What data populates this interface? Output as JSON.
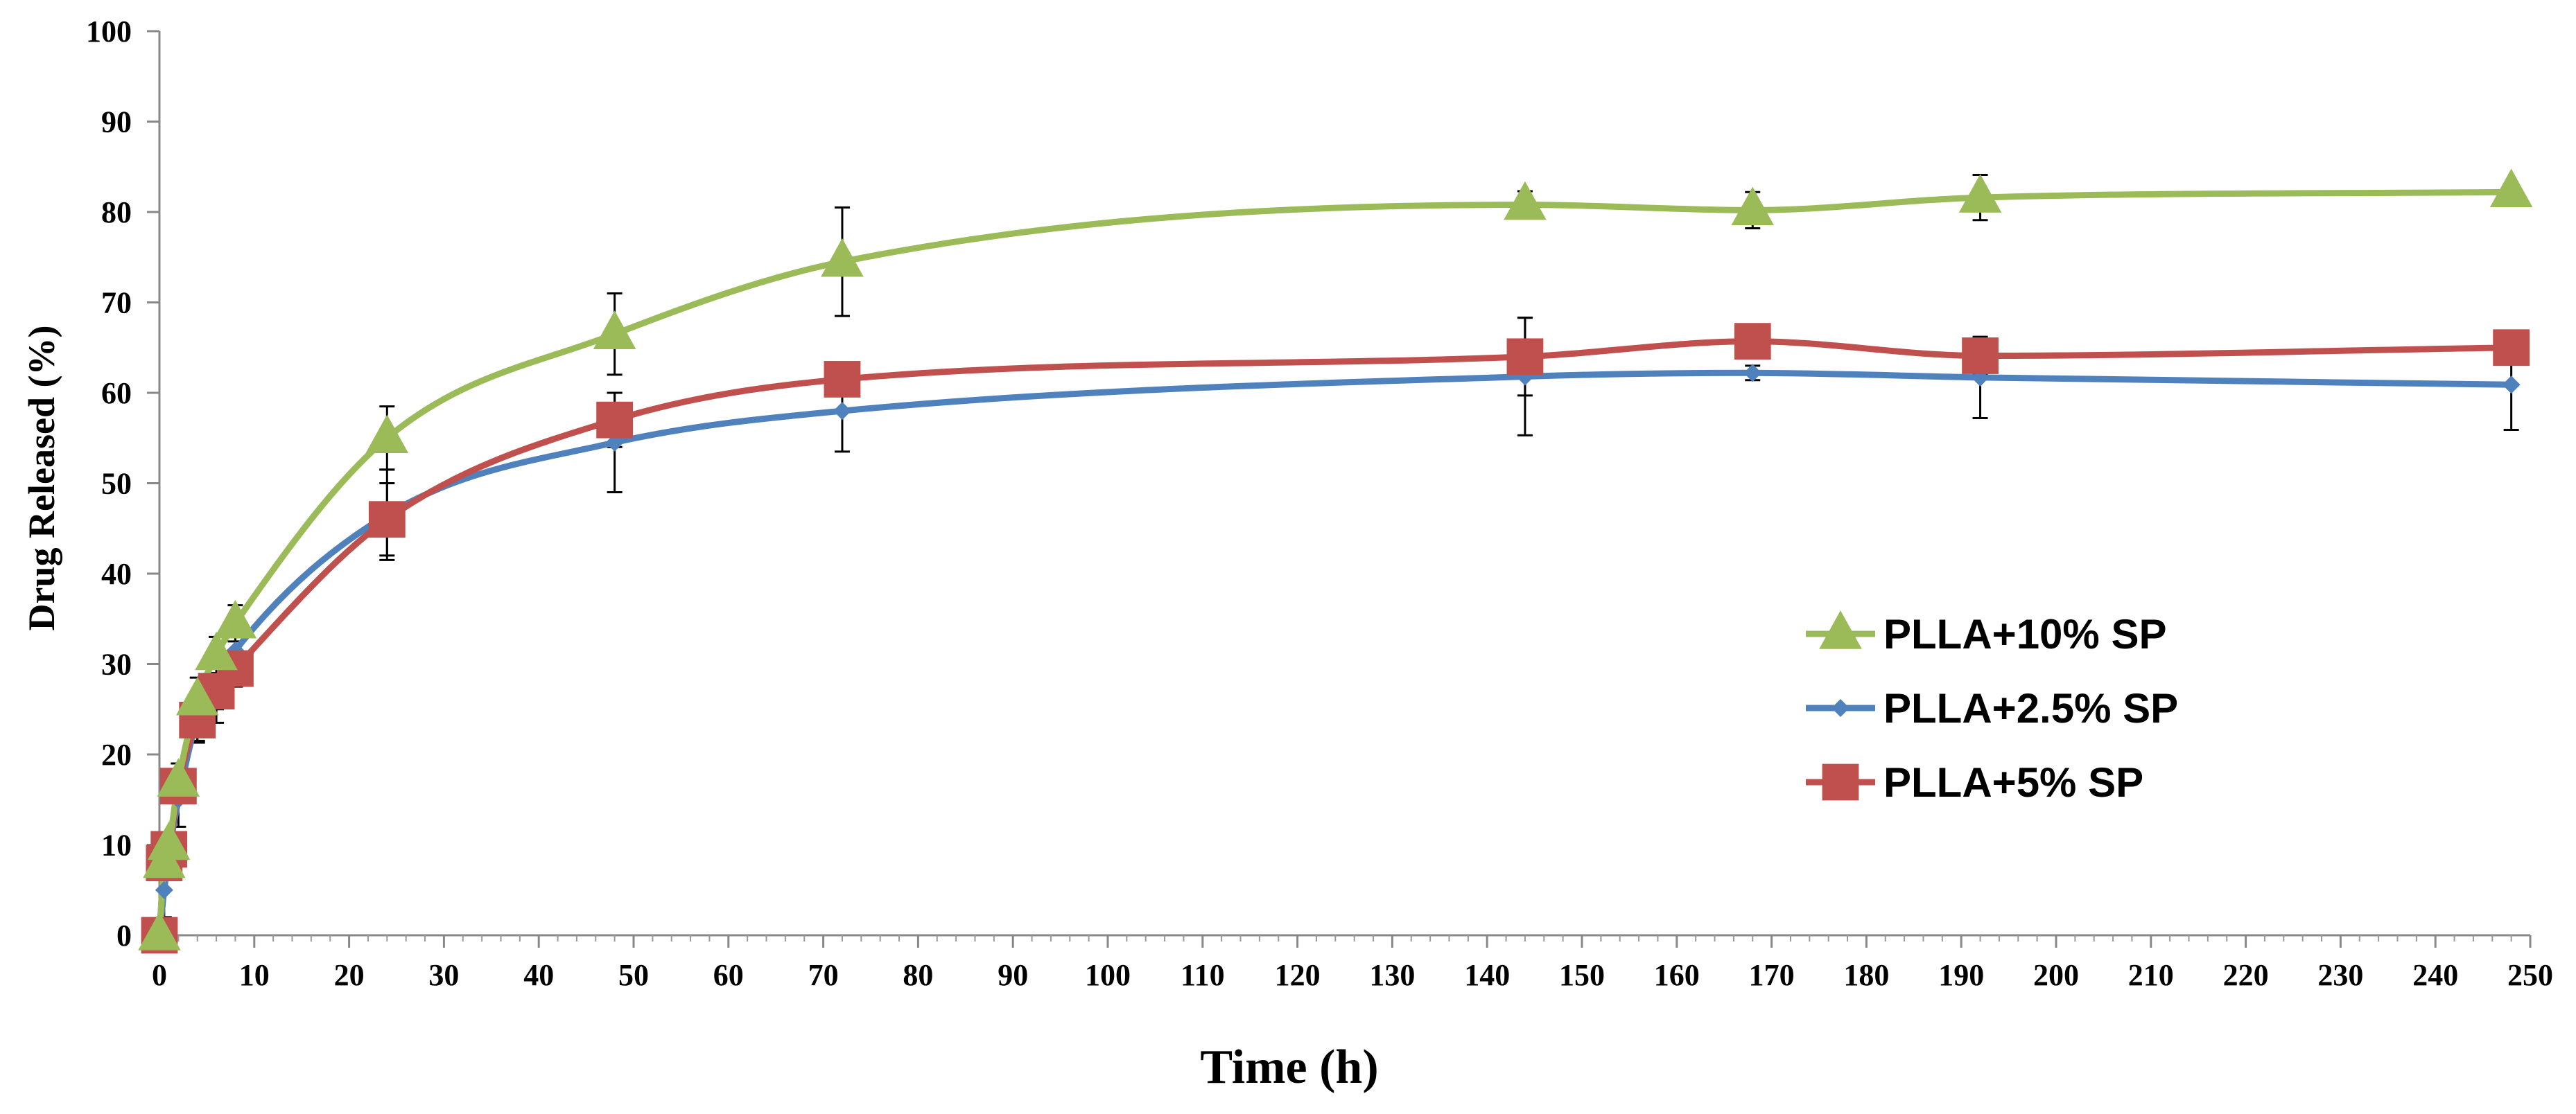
{
  "chart_data": {
    "type": "line",
    "title": "",
    "xlabel": "Time (h)",
    "ylabel": "Drug Released (%)",
    "xlim": [
      0,
      250
    ],
    "ylim": [
      0,
      100
    ],
    "x_ticks": [
      0,
      10,
      20,
      30,
      40,
      50,
      60,
      70,
      80,
      90,
      100,
      110,
      120,
      130,
      140,
      150,
      160,
      170,
      180,
      190,
      200,
      210,
      220,
      230,
      240,
      250
    ],
    "y_ticks": [
      0,
      10,
      20,
      30,
      40,
      50,
      60,
      70,
      80,
      90,
      100
    ],
    "x_tick_labels": [
      "0",
      "10",
      "20",
      "30",
      "40",
      "50",
      "60",
      "70",
      "80",
      "90",
      "100",
      "110",
      "120",
      "130",
      "140",
      "150",
      "160",
      "170",
      "180",
      "190",
      "200",
      "210",
      "220",
      "230",
      "240",
      "250"
    ],
    "y_tick_labels": [
      "0",
      "10",
      "20",
      "30",
      "40",
      "50",
      "60",
      "70",
      "80",
      "90",
      "100"
    ],
    "grid": false,
    "smooth": true,
    "legend": {
      "position": "center-right"
    },
    "x": [
      0,
      0.5,
      1,
      2,
      4,
      6,
      8,
      24,
      48,
      72,
      144,
      168,
      192,
      248
    ],
    "series": [
      {
        "name": "PLLA+10% SP",
        "color": "#9BBB59",
        "marker": "triangle",
        "values": [
          0,
          8,
          10,
          17,
          26,
          31,
          34.5,
          55,
          66.5,
          74.5,
          80.8,
          80.2,
          81.6,
          82.2
        ],
        "errors": [
          0,
          1,
          1,
          2,
          2.5,
          2,
          2,
          3.5,
          4.5,
          6,
          1.5,
          2,
          2.5,
          0.5
        ]
      },
      {
        "name": "PLLA+2.5% SP",
        "color": "#4F81BD",
        "marker": "diamond",
        "values": [
          0,
          5,
          9,
          15,
          24,
          28,
          31.5,
          46.5,
          54.5,
          58,
          61.8,
          62.2,
          61.7,
          60.9
        ],
        "errors": [
          0,
          3,
          2,
          3,
          2.5,
          3,
          3,
          5,
          5.5,
          4.5,
          6.5,
          0.8,
          4.5,
          5
        ]
      },
      {
        "name": "PLLA+5% SP",
        "color": "#C0504D",
        "marker": "square",
        "values": [
          0,
          8,
          9.5,
          16.5,
          23.8,
          27,
          29.5,
          46,
          57,
          61.5,
          64,
          65.7,
          64.1,
          65
        ],
        "errors": [
          0,
          1.5,
          1,
          1.5,
          2.5,
          3.5,
          2,
          4,
          3,
          1,
          4.3,
          0.5,
          2,
          1.5
        ]
      }
    ]
  }
}
